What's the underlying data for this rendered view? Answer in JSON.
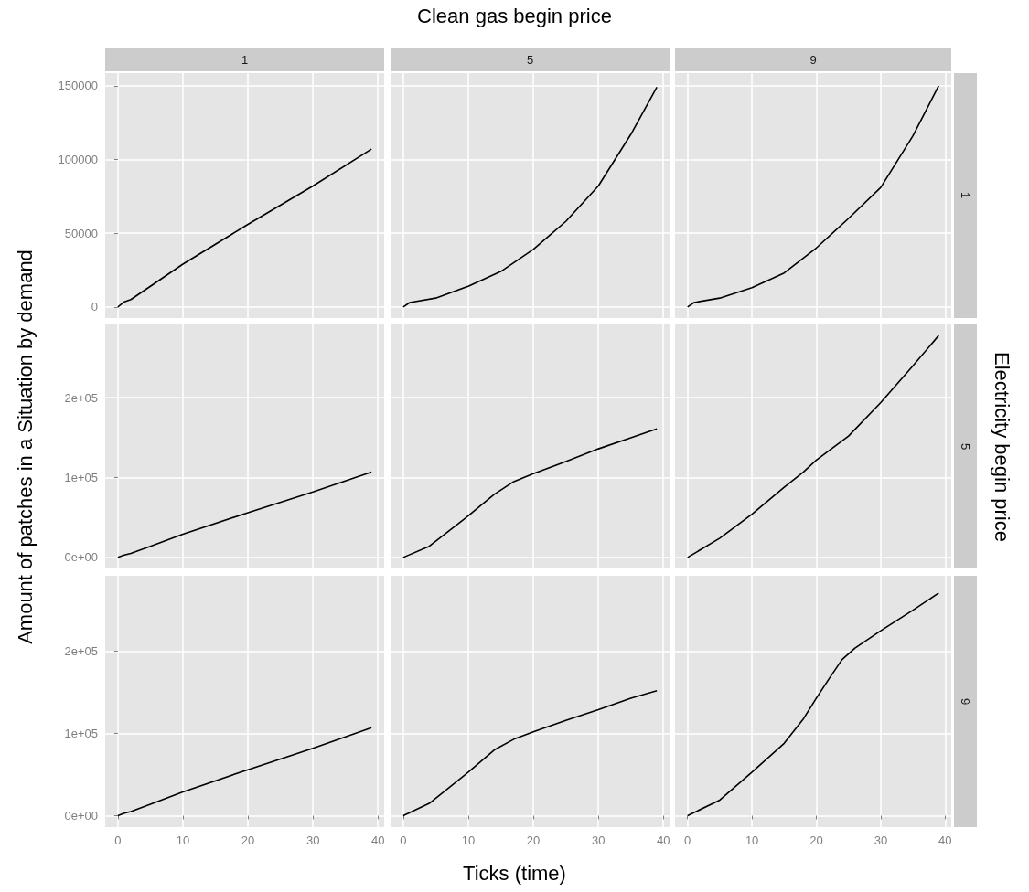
{
  "chart_data": [
    {
      "type": "line",
      "title": "1",
      "x": [
        0,
        1,
        2,
        5,
        10,
        20,
        30,
        39
      ],
      "values": [
        0,
        3500,
        5000,
        14000,
        29000,
        56000,
        82000,
        107000
      ],
      "color": "#000000",
      "xlim": [
        -1.95,
        40.95
      ],
      "xticks": [
        0,
        10,
        20,
        30,
        40
      ],
      "ylim": [
        -7550,
        158550
      ],
      "yticks": [
        0,
        50000,
        100000,
        150000
      ],
      "grid": true,
      "tick_labels": "y"
    },
    {
      "type": "line",
      "title": "5",
      "annotations": [
        "Clean gas begin price"
      ],
      "x": [
        0,
        1,
        5,
        10,
        15,
        20,
        25,
        30,
        35,
        39
      ],
      "values": [
        0,
        3000,
        6000,
        14000,
        24000,
        39000,
        58000,
        82000,
        117000,
        149000
      ],
      "color": "#000000",
      "xlim": [
        -1.95,
        40.95
      ],
      "xticks": [
        0,
        10,
        20,
        30,
        40
      ],
      "ylim": [
        -7550,
        158550
      ],
      "yticks": [
        0,
        50000,
        100000,
        150000
      ],
      "grid": true,
      "tick_labels": false
    },
    {
      "type": "line",
      "title": "9",
      "y2label": "1",
      "x": [
        0,
        1,
        5,
        10,
        15,
        20,
        25,
        30,
        35,
        39
      ],
      "values": [
        0,
        3000,
        6000,
        13000,
        23000,
        40000,
        60000,
        81000,
        116000,
        150000
      ],
      "color": "#000000",
      "xlim": [
        -1.95,
        40.95
      ],
      "xticks": [
        0,
        10,
        20,
        30,
        40
      ],
      "ylim": [
        -7550,
        158550
      ],
      "yticks": [
        0,
        50000,
        100000,
        150000
      ],
      "grid": true,
      "tick_labels": false
    },
    {
      "type": "line",
      "ylabel": "Amount of patches in a Situation by demand",
      "x": [
        0,
        1,
        2,
        5,
        10,
        20,
        30,
        39
      ],
      "values": [
        0,
        3000,
        5000,
        14000,
        29000,
        56000,
        82000,
        107000
      ],
      "color": "#000000",
      "xlim": [
        -1.95,
        40.95
      ],
      "xticks": [
        0,
        10,
        20,
        30,
        40
      ],
      "ylim": [
        -13900,
        291900
      ],
      "yticks": [
        {
          "value": 0,
          "label": "0e+00"
        },
        {
          "value": 100000,
          "label": "1e+05"
        },
        {
          "value": 200000,
          "label": "2e+05"
        }
      ],
      "grid": true,
      "tick_labels": "y"
    },
    {
      "type": "line",
      "x": [
        0,
        4,
        10,
        14,
        17,
        20,
        25,
        30,
        35,
        39
      ],
      "values": [
        0,
        14000,
        52000,
        79000,
        95000,
        105000,
        120000,
        136000,
        150000,
        161000
      ],
      "color": "#000000",
      "xlim": [
        -1.95,
        40.95
      ],
      "xticks": [
        0,
        10,
        20,
        30,
        40
      ],
      "ylim": [
        -13900,
        291900
      ],
      "yticks": [
        {
          "value": 0,
          "label": null
        },
        {
          "value": 100000,
          "label": null
        },
        {
          "value": 200000,
          "label": null
        }
      ],
      "grid": true,
      "tick_labels": false
    },
    {
      "type": "line",
      "y2label": "5",
      "annotations": [
        "Electricity begin price"
      ],
      "x": [
        0,
        5,
        10,
        15,
        18,
        20,
        25,
        30,
        35,
        39
      ],
      "values": [
        0,
        24000,
        54000,
        88000,
        107000,
        122000,
        152000,
        194000,
        240000,
        278000
      ],
      "color": "#000000",
      "xlim": [
        -1.95,
        40.95
      ],
      "xticks": [
        0,
        10,
        20,
        30,
        40
      ],
      "ylim": [
        -13900,
        291900
      ],
      "yticks": [
        {
          "value": 0,
          "label": null
        },
        {
          "value": 100000,
          "label": null
        },
        {
          "value": 200000,
          "label": null
        }
      ],
      "grid": true,
      "tick_labels": false
    },
    {
      "type": "line",
      "x": [
        0,
        1,
        2,
        5,
        10,
        20,
        30,
        39
      ],
      "values": [
        0,
        3000,
        5000,
        14000,
        29000,
        56000,
        82000,
        107000
      ],
      "color": "#000000",
      "xlim": [
        -1.95,
        40.95
      ],
      "xticks": [
        0,
        10,
        20,
        30,
        40
      ],
      "ylim": [
        -13900,
        291900
      ],
      "yticks": [
        {
          "value": 0,
          "label": "0e+00"
        },
        {
          "value": 100000,
          "label": "1e+05"
        },
        {
          "value": 200000,
          "label": "2e+05"
        }
      ],
      "grid": true
    },
    {
      "type": "line",
      "xlabel": "Ticks (time)",
      "x": [
        0,
        4,
        10,
        14,
        17,
        20,
        25,
        30,
        35,
        39
      ],
      "values": [
        0,
        15000,
        53000,
        80000,
        93000,
        102000,
        116000,
        129000,
        143000,
        152000
      ],
      "color": "#000000",
      "xlim": [
        -1.95,
        40.95
      ],
      "xticks": [
        0,
        10,
        20,
        30,
        40
      ],
      "ylim": [
        -13900,
        291900
      ],
      "yticks": [
        {
          "value": 0,
          "label": null
        },
        {
          "value": 100000,
          "label": null
        },
        {
          "value": 200000,
          "label": null
        }
      ],
      "grid": true,
      "tick_labels": "x"
    },
    {
      "type": "line",
      "y2label": "9",
      "x": [
        0,
        5,
        10,
        15,
        18,
        20,
        22,
        24,
        26,
        30,
        35,
        39
      ],
      "values": [
        0,
        19000,
        53000,
        88000,
        118000,
        143000,
        167000,
        190000,
        204000,
        225000,
        250000,
        271000
      ],
      "color": "#000000",
      "xlim": [
        -1.95,
        40.95
      ],
      "xticks": [
        0,
        10,
        20,
        30,
        40
      ],
      "ylim": [
        -13900,
        291900
      ],
      "yticks": [
        {
          "value": 0,
          "label": null
        },
        {
          "value": 100000,
          "label": null
        },
        {
          "value": 200000,
          "label": null
        }
      ],
      "grid": true,
      "tick_labels": "x"
    }
  ]
}
